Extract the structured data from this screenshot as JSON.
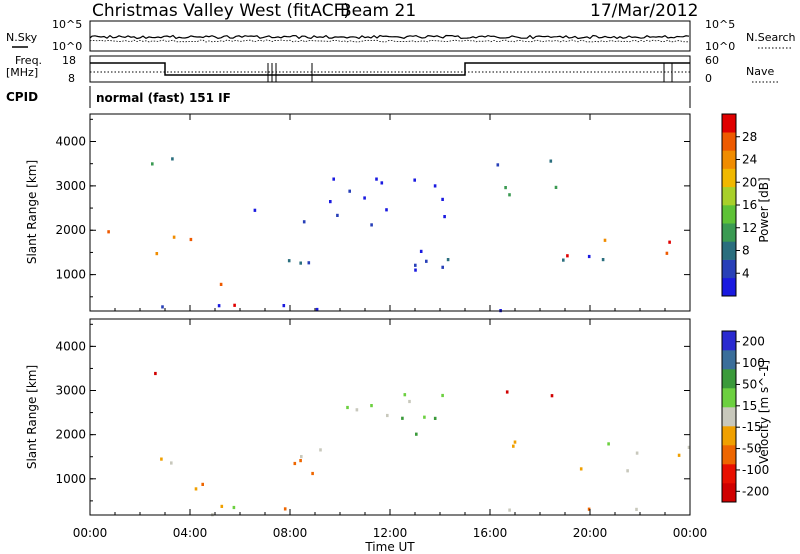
{
  "header": {
    "title": "Christmas Valley West (fitACF)",
    "beam": "Beam 21",
    "date": "17/Mar/2012"
  },
  "aux_panels": {
    "nsky_label": "N.Sky",
    "nsky_top": "10^5",
    "nsky_bottom": "10^0",
    "nsearch_label": "N.Search",
    "nsearch_top": "10^5",
    "nsearch_bottom": "10^0",
    "freq_label_1": "Freq.",
    "freq_label_2": "[MHz]",
    "freq_top": "18",
    "freq_bottom": "8",
    "nave_label": "Nave",
    "nave_top": "60",
    "nave_bottom": "0",
    "cpid_label": "CPID",
    "cpid_value": "normal (fast) 151 IF"
  },
  "chart_data": [
    {
      "type": "heatmap",
      "title": "Power",
      "xlabel": "Time UT",
      "ylabel": "Slant Range [km]",
      "x_ticks": [
        "00:00",
        "04:00",
        "08:00",
        "12:00",
        "16:00",
        "20:00",
        "00:00"
      ],
      "xlim_hours": [
        0,
        24
      ],
      "y_ticks": [
        "1000",
        "2000",
        "3000",
        "4000"
      ],
      "ylim": [
        180,
        4620
      ],
      "colorbar": {
        "label": "Power [dB]",
        "ticks": [
          "4",
          "8",
          "12",
          "16",
          "20",
          "24",
          "28"
        ],
        "colors": [
          "#1a1ae0",
          "#2840b8",
          "#2a6e7e",
          "#3a9a52",
          "#5ec236",
          "#a8d02a",
          "#f0b800",
          "#f08c00",
          "#ee5a00",
          "#e00000"
        ]
      },
      "regions": [
        {
          "h0": 0.0,
          "h1": 4.0,
          "r0": 1250,
          "r1": 2100,
          "level": 7
        },
        {
          "h0": 4.0,
          "h1": 5.5,
          "r0": 700,
          "r1": 1300,
          "level": 8
        },
        {
          "h0": 5.5,
          "h1": 6.5,
          "r0": 250,
          "r1": 700,
          "level": 8
        },
        {
          "h0": 1.5,
          "h1": 3.5,
          "r0": 2800,
          "r1": 3800,
          "level": 3
        },
        {
          "h0": 6.0,
          "h1": 14.5,
          "r0": 1000,
          "r1": 1800,
          "level": 1
        },
        {
          "h0": 6.5,
          "h1": 14.5,
          "r0": 2000,
          "r1": 3700,
          "level": 0
        },
        {
          "h0": 16.0,
          "h1": 19.0,
          "r0": 2200,
          "r1": 3600,
          "level": 2
        },
        {
          "h0": 19.0,
          "h1": 24.0,
          "r0": 1250,
          "r1": 1900,
          "level": 8
        },
        {
          "h0": 14.0,
          "h1": 24.0,
          "r0": 1100,
          "r1": 1500,
          "level": 1
        },
        {
          "h0": 0.0,
          "h1": 24.0,
          "r0": 200,
          "r1": 400,
          "level": 0
        }
      ]
    },
    {
      "type": "heatmap",
      "title": "Velocity",
      "xlabel": "Time UT",
      "ylabel": "Slant Range [km]",
      "x_ticks": [
        "00:00",
        "04:00",
        "08:00",
        "12:00",
        "16:00",
        "20:00",
        "00:00"
      ],
      "xlim_hours": [
        0,
        24
      ],
      "y_ticks": [
        "1000",
        "2000",
        "3000",
        "4000"
      ],
      "ylim": [
        180,
        4620
      ],
      "colorbar": {
        "label": "Velocity [m s^-1]",
        "ticks": [
          "200",
          "100",
          "50",
          "15",
          "-15",
          "-50",
          "-100",
          "-200"
        ],
        "colors": [
          "#2a2ad0",
          "#3a6e9a",
          "#3a9a3a",
          "#6cd040",
          "#c8c8bc",
          "#f0a000",
          "#ee6600",
          "#e81000",
          "#d00000"
        ]
      },
      "regions": [
        {
          "h0": 0.0,
          "h1": 4.0,
          "r0": 1250,
          "r1": 1700,
          "level": 4
        },
        {
          "h0": 3.5,
          "h1": 5.5,
          "r0": 800,
          "r1": 1600,
          "level": 5
        },
        {
          "h0": 5.0,
          "h1": 6.8,
          "r0": 300,
          "r1": 1200,
          "level": 4
        },
        {
          "h0": 1.5,
          "h1": 3.0,
          "r0": 3000,
          "r1": 3600,
          "level": 8
        },
        {
          "h0": 6.5,
          "h1": 14.0,
          "r0": 1100,
          "r1": 1700,
          "level": 5
        },
        {
          "h0": 8.0,
          "h1": 14.5,
          "r0": 2000,
          "r1": 3500,
          "level": 3
        },
        {
          "h0": 15.5,
          "h1": 18.5,
          "r0": 2900,
          "r1": 3500,
          "level": 8
        },
        {
          "h0": 14.0,
          "h1": 24.0,
          "r0": 1200,
          "r1": 1900,
          "level": 4
        },
        {
          "h0": 0.0,
          "h1": 24.0,
          "r0": 200,
          "r1": 380,
          "level": 5
        }
      ]
    }
  ]
}
